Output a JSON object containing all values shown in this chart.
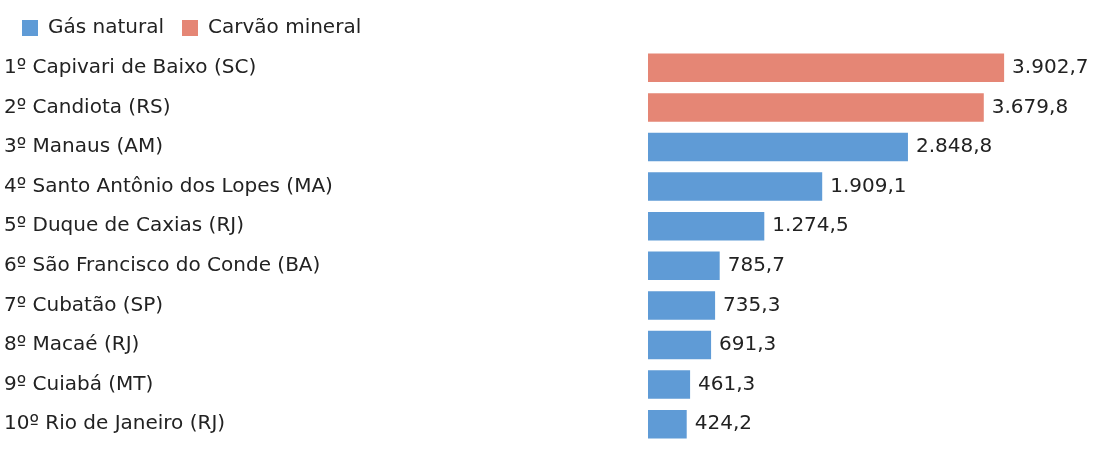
{
  "chart_data": {
    "type": "bar",
    "orientation": "horizontal",
    "legend": "top left",
    "categories": [
      "1º Capivari de Baixo (SC)",
      "2º Candiota (RS)",
      "3º Manaus (AM)",
      "4º Santo Antônio dos Lopes (MA)",
      "5º Duque de Caxias (RJ)",
      "6º São Francisco do Conde (BA)",
      "7º Cubatão (SP)",
      "8º Macaé (RJ)",
      "9º Cuiabá (MT)",
      "10º Rio de Janeiro (RJ)"
    ],
    "series": [
      {
        "name": "Gás natural",
        "color": "#5f9bd6",
        "values": [
          null,
          null,
          2848.8,
          1909.1,
          1274.5,
          785.7,
          735.3,
          691.3,
          461.3,
          424.2
        ],
        "value_labels": [
          null,
          null,
          "2.848,8",
          "1.909,1",
          "1.274,5",
          "785,7",
          "735,3",
          "691,3",
          "461,3",
          "424,2"
        ]
      },
      {
        "name": "Carvão mineral",
        "color": "#e58675",
        "values": [
          3902.7,
          3679.8,
          null,
          null,
          null,
          null,
          null,
          null,
          null,
          null
        ],
        "value_labels": [
          "3.902,7",
          "3.679,8",
          null,
          null,
          null,
          null,
          null,
          null,
          null,
          null
        ]
      }
    ]
  }
}
